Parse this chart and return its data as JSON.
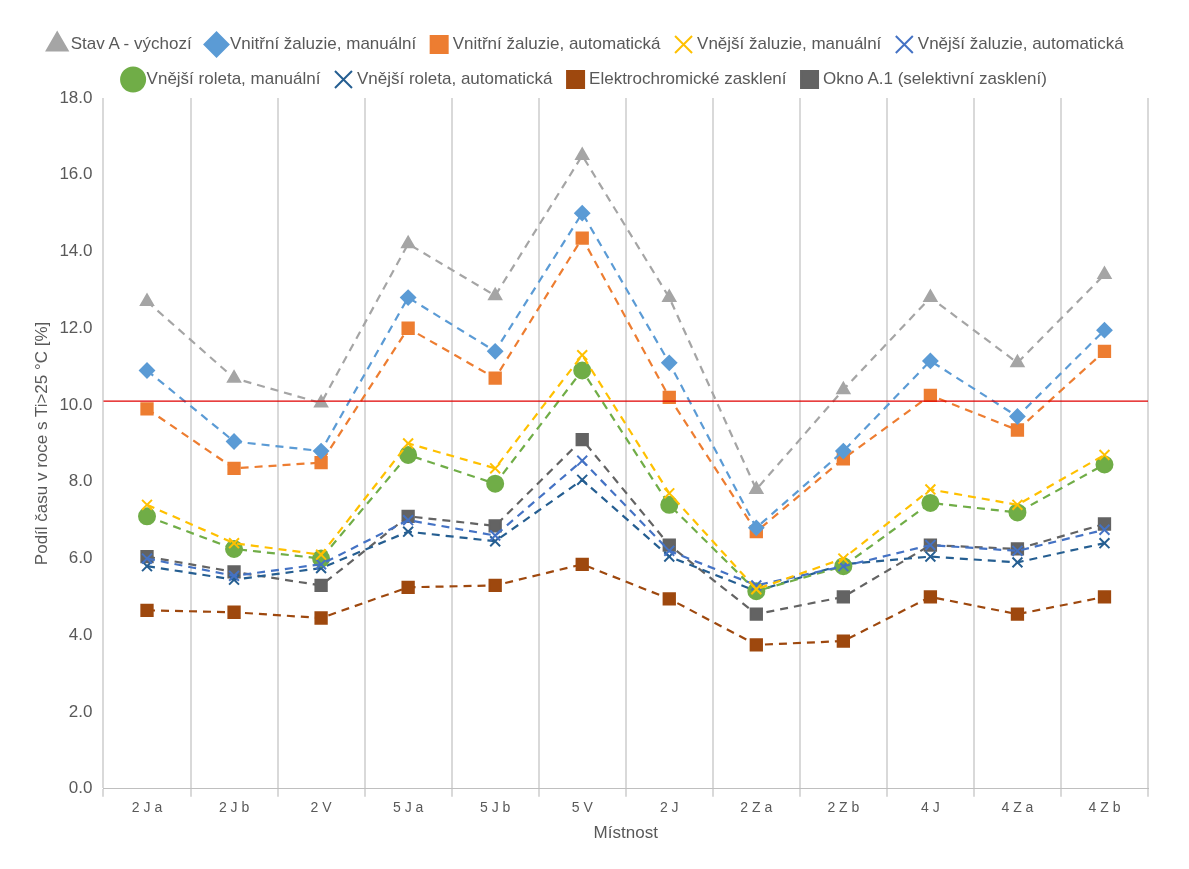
{
  "chart_data": {
    "type": "line",
    "xlabel": "Místnost",
    "ylabel": "Podíl času v roce s Ti>25 °C [%]",
    "categories": [
      "2 J a",
      "2 J b",
      "2 V",
      "5 J a",
      "5 J b",
      "5 V",
      "2 J",
      "2 Z a",
      "2 Z b",
      "4 J",
      "4 Z a",
      "4 Z b"
    ],
    "ylim": [
      0,
      18
    ],
    "yticks": [
      {
        "value": 0,
        "label": "0.0"
      },
      {
        "value": 2,
        "label": "2.0"
      },
      {
        "value": 4,
        "label": "4.0"
      },
      {
        "value": 6,
        "label": "6.0"
      },
      {
        "value": 8,
        "label": "8.0"
      },
      {
        "value": 10,
        "label": "10.0"
      },
      {
        "value": 12,
        "label": "12.0"
      },
      {
        "value": 14,
        "label": "14.0"
      },
      {
        "value": 16,
        "label": "16.0"
      },
      {
        "value": 18,
        "label": "18.0"
      }
    ],
    "grid": "x",
    "legend": "top",
    "line_style": "dashed",
    "ref_lines": [
      {
        "axis": "y",
        "value": 10.1,
        "color": "#e00000",
        "line_style": "solid"
      }
    ],
    "series": [
      {
        "name": "Stav A - výchozí",
        "color": "#a5a5a5",
        "marker": "triangle",
        "values": [
          12.7,
          10.7,
          10.05,
          14.2,
          12.85,
          16.5,
          12.8,
          7.8,
          10.4,
          12.8,
          11.1,
          13.4
        ]
      },
      {
        "name": "Vnitřní žaluzie, manuální",
        "color": "#5b9bd5",
        "marker": "diamond",
        "values": [
          10.9,
          9.05,
          8.8,
          12.8,
          11.4,
          15.0,
          11.1,
          6.8,
          8.8,
          11.15,
          9.7,
          11.95
        ]
      },
      {
        "name": "Vnitřní žaluzie, automatická",
        "color": "#ed7d31",
        "marker": "square",
        "values": [
          9.9,
          8.35,
          8.5,
          12.0,
          10.7,
          14.35,
          10.2,
          6.7,
          8.6,
          10.25,
          9.35,
          11.4
        ]
      },
      {
        "name": "Vnější žaluzie, manuální",
        "color": "#ffc000",
        "marker": "cross",
        "values": [
          7.4,
          6.4,
          6.1,
          9.0,
          8.35,
          11.3,
          7.7,
          5.2,
          6.0,
          7.8,
          7.4,
          8.7
        ]
      },
      {
        "name": "Vnější žaluzie, automatická",
        "color": "#4472c4",
        "marker": "cross",
        "values": [
          6.0,
          5.55,
          5.85,
          7.0,
          6.6,
          8.55,
          6.2,
          5.3,
          5.8,
          6.35,
          6.2,
          6.75
        ]
      },
      {
        "name": "Vnější roleta, manuální",
        "color": "#70ad47",
        "marker": "circle",
        "values": [
          7.1,
          6.25,
          6.0,
          8.7,
          7.95,
          10.9,
          7.4,
          5.15,
          5.8,
          7.45,
          7.2,
          8.45
        ]
      },
      {
        "name": "Vnější roleta, automatická",
        "color": "#255e91",
        "marker": "cross",
        "values": [
          5.8,
          5.45,
          5.75,
          6.7,
          6.45,
          8.05,
          6.05,
          5.15,
          5.85,
          6.05,
          5.9,
          6.4
        ]
      },
      {
        "name": "Elektrochromické zasklení",
        "color": "#9e480e",
        "marker": "square",
        "values": [
          4.65,
          4.6,
          4.45,
          5.25,
          5.3,
          5.85,
          4.95,
          3.75,
          3.85,
          5.0,
          4.55,
          5.0
        ]
      },
      {
        "name": "Okno A.1 (selektivní zasklení)",
        "color": "#636363",
        "marker": "square",
        "values": [
          6.05,
          5.65,
          5.3,
          7.1,
          6.85,
          9.1,
          6.35,
          4.55,
          5.0,
          6.35,
          6.25,
          6.9
        ]
      }
    ]
  }
}
